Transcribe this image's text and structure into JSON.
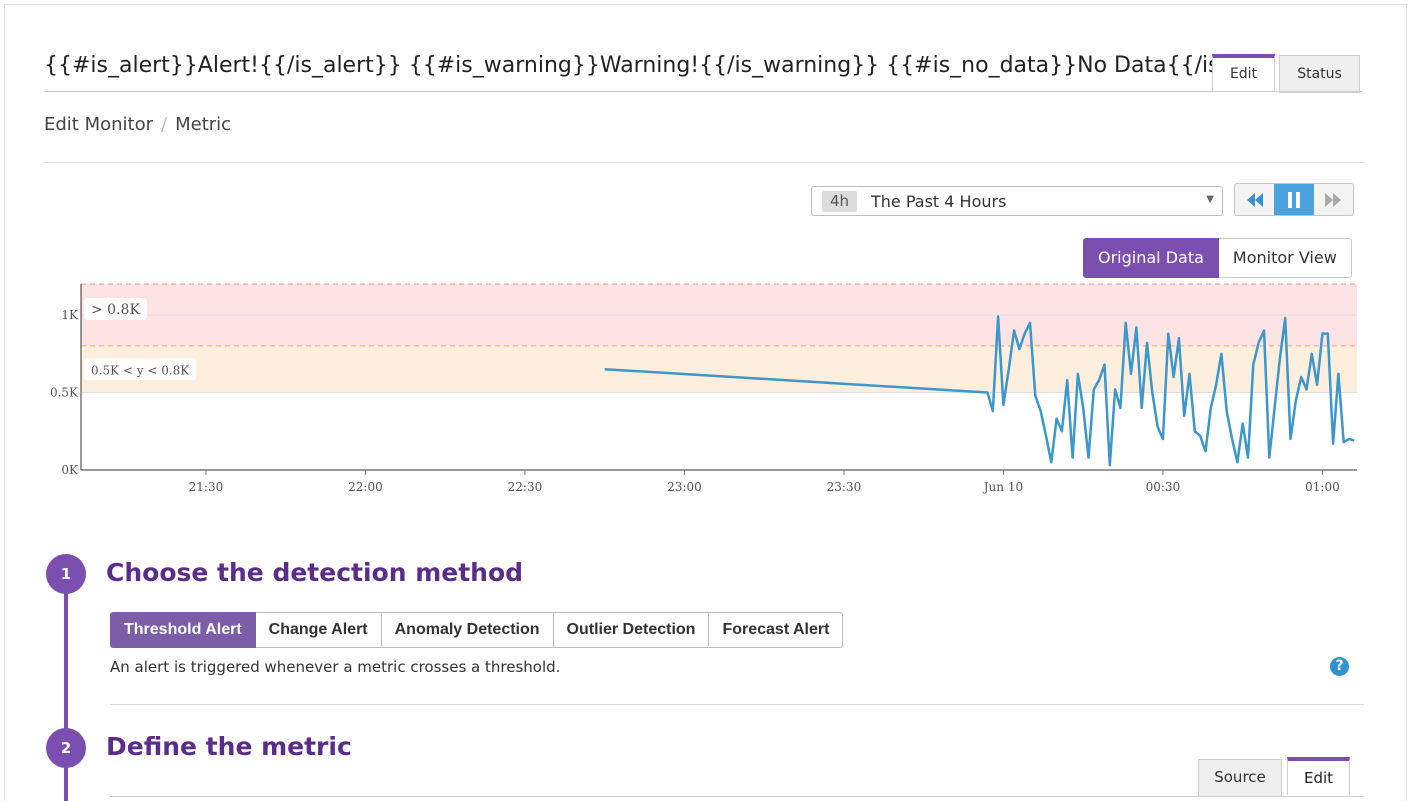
{
  "monitor": {
    "title_value": "{{#is_alert}}Alert!{{/is_alert}} {{#is_warning}}Warning!{{/is_warning}} {{#is_no_data}}No Data{{/is_no_data}}",
    "tabs": {
      "edit": "Edit",
      "status": "Status"
    }
  },
  "breadcrumb": {
    "parent": "Edit Monitor",
    "separator": "/",
    "current": "Metric"
  },
  "time_selector": {
    "badge": "4h",
    "label": "The Past 4 Hours"
  },
  "view_toggle": {
    "original": "Original Data",
    "monitor": "Monitor View"
  },
  "chart_data": {
    "type": "line",
    "y_ticks": [
      "0K",
      "0.5K",
      "1K"
    ],
    "ylim": [
      0,
      1.2
    ],
    "x_ticks": [
      "21:30",
      "22:00",
      "22:30",
      "23:00",
      "23:30",
      "Jun 10",
      "00:30",
      "01:00"
    ],
    "x_tick_minutes": [
      30,
      60,
      90,
      120,
      150,
      180,
      210,
      240
    ],
    "xlim": [
      6.5,
      246.5
    ],
    "thresholds": [
      {
        "label": "> 0.8K",
        "min": 0.8,
        "max": 1.2,
        "color": "#fde3e3",
        "text_color": "#e05a5a"
      },
      {
        "label": "0.5K < y < 0.8K",
        "min": 0.5,
        "max": 0.8,
        "color": "#fdeedd",
        "text_color": "#f0a030"
      }
    ],
    "series": [
      {
        "color": "#3b97cc",
        "x": [
          105,
          177,
          178,
          179,
          180,
          181,
          182,
          183,
          184,
          185,
          186,
          187,
          188,
          189,
          190,
          191,
          192,
          193,
          194,
          195,
          196,
          197,
          198,
          199,
          200,
          201,
          202,
          203,
          204,
          205,
          206,
          207,
          208,
          209,
          210,
          211,
          212,
          213,
          214,
          215,
          216,
          217,
          218,
          219,
          220,
          221,
          222,
          223,
          224,
          225,
          226,
          227,
          228,
          229,
          230,
          231,
          232,
          233,
          234,
          235,
          236,
          237,
          238,
          239,
          240,
          241,
          242,
          243,
          244,
          245,
          246
        ],
        "y": [
          0.65,
          0.5,
          0.38,
          0.99,
          0.42,
          0.65,
          0.9,
          0.78,
          0.88,
          0.95,
          0.48,
          0.38,
          0.22,
          0.05,
          0.33,
          0.25,
          0.58,
          0.08,
          0.62,
          0.4,
          0.08,
          0.52,
          0.58,
          0.68,
          0.03,
          0.52,
          0.4,
          0.95,
          0.62,
          0.92,
          0.4,
          0.82,
          0.5,
          0.28,
          0.2,
          0.88,
          0.6,
          0.85,
          0.35,
          0.62,
          0.25,
          0.22,
          0.12,
          0.4,
          0.55,
          0.75,
          0.38,
          0.2,
          0.05,
          0.3,
          0.08,
          0.68,
          0.82,
          0.9,
          0.08,
          0.4,
          0.72,
          0.98,
          0.2,
          0.45,
          0.6,
          0.52,
          0.75,
          0.55,
          0.88,
          0.88,
          0.17,
          0.62,
          0.18,
          0.2,
          0.19
        ]
      }
    ]
  },
  "steps": [
    {
      "number": "1",
      "title": "Choose the detection method"
    },
    {
      "number": "2",
      "title": "Define the metric"
    }
  ],
  "detection_methods": [
    "Threshold Alert",
    "Change Alert",
    "Anomaly Detection",
    "Outlier Detection",
    "Forecast Alert"
  ],
  "detection_description": "An alert is triggered whenever a metric crosses a threshold.",
  "help_icon": "?",
  "metric_tabs": {
    "source": "Source",
    "edit": "Edit"
  },
  "colors": {
    "accent": "#7b4fb0",
    "series": "#3b97cc",
    "help": "#2f92d1"
  }
}
